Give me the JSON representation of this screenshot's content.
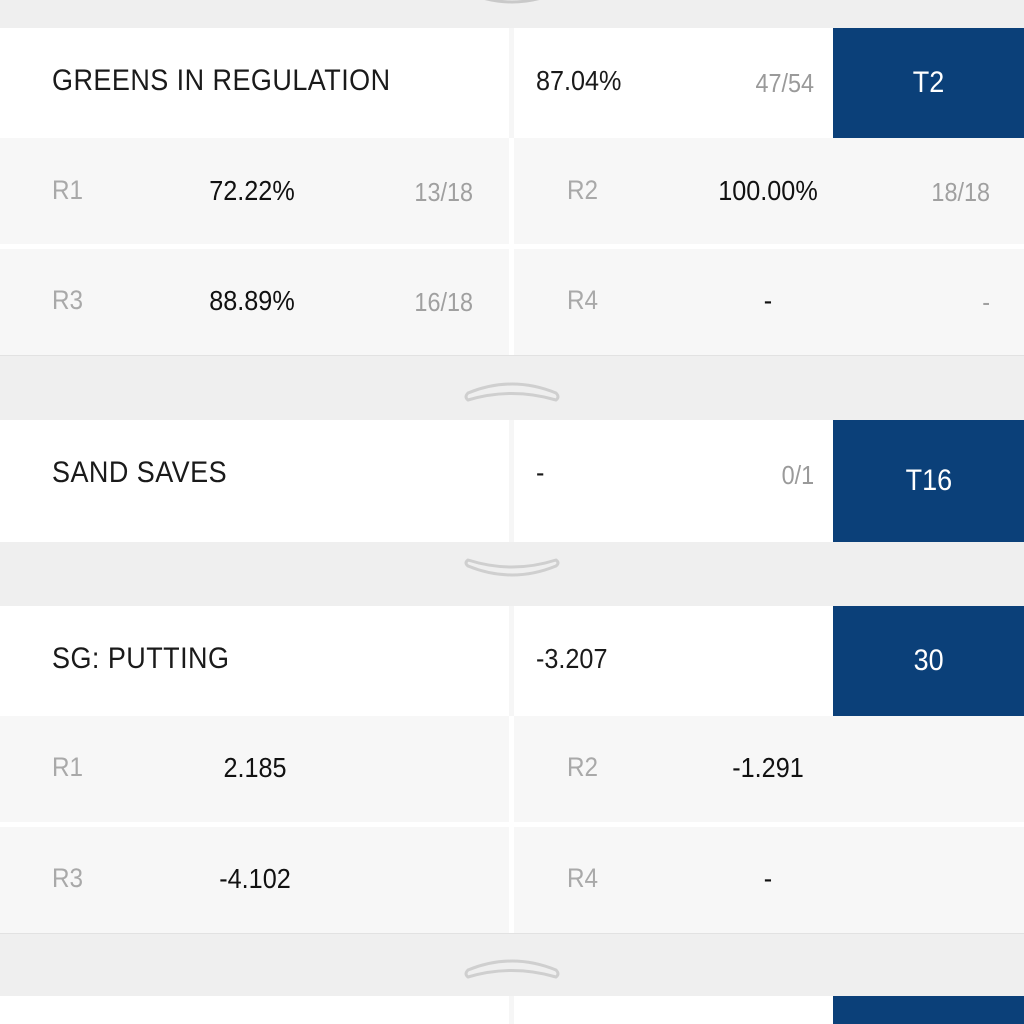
{
  "sections": [
    {
      "title": "GREENS IN REGULATION",
      "total": "87.04%",
      "fraction": "47/54",
      "rank": "T2",
      "rounds": [
        {
          "label": "R1",
          "value": "72.22%",
          "fraction": "13/18"
        },
        {
          "label": "R2",
          "value": "100.00%",
          "fraction": "18/18"
        },
        {
          "label": "R3",
          "value": "88.89%",
          "fraction": "16/18"
        },
        {
          "label": "R4",
          "value": "-",
          "fraction": "-"
        }
      ]
    },
    {
      "title": "SAND SAVES",
      "total": "-",
      "fraction": "0/1",
      "rank": "T16"
    },
    {
      "title": "SG: PUTTING",
      "total": "-3.207",
      "rank": "30",
      "rounds": [
        {
          "label": "R1",
          "value": "2.185"
        },
        {
          "label": "R2",
          "value": "-1.291"
        },
        {
          "label": "R3",
          "value": "-4.102"
        },
        {
          "label": "R4",
          "value": "-"
        }
      ]
    }
  ],
  "toggles": [
    {
      "state": "collapse",
      "icon": "chevron-down-icon"
    },
    {
      "state": "expand",
      "icon": "chevron-up-icon"
    },
    {
      "state": "collapse",
      "icon": "chevron-down-icon"
    },
    {
      "state": "expand",
      "icon": "chevron-up-icon"
    }
  ],
  "colors": {
    "rank_bg": "#0b4079",
    "rank_text": "#ffffff",
    "band_bg": "#efefef",
    "row_bg": "#ffffff",
    "subrow_bg": "#f7f7f7",
    "muted_text": "#a9a9a9"
  }
}
